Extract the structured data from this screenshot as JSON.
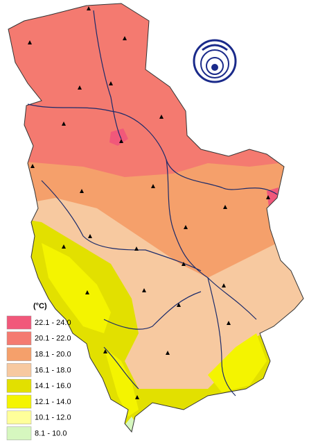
{
  "legend": {
    "title": "(°C)",
    "items": [
      {
        "label": "22.1 - 24.0",
        "color": "#f1587a"
      },
      {
        "label": "20.1 - 22.0",
        "color": "#f47a70"
      },
      {
        "label": "18.1 - 20.0",
        "color": "#f5a06b"
      },
      {
        "label": "16.1 - 18.0",
        "color": "#f7c9a0"
      },
      {
        "label": "14.1 - 16.0",
        "color": "#e2e000"
      },
      {
        "label": "12.1 - 14.0",
        "color": "#f4f400"
      },
      {
        "label": "10.1 - 12.0",
        "color": "#ffff9a"
      },
      {
        "label": "8.1 - 10.0",
        "color": "#d6f7bf"
      }
    ]
  }
}
